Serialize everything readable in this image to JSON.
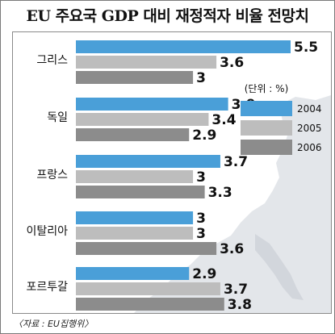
{
  "title": "EU 주요국 GDP 대비 재정적자 비율 전망치",
  "source": "〈자료 : EU집행위〉",
  "unit": "(단위 : %)",
  "chart_data": {
    "type": "bar",
    "orientation": "horizontal",
    "title": "EU 주요국 GDP 대비 재정적자 비율 전망치",
    "unit": "(단위 : %)",
    "categories": [
      "그리스",
      "독일",
      "프랑스",
      "이탈리아",
      "포르투갈"
    ],
    "series": [
      {
        "name": "2004",
        "color": "#4a9fd8",
        "values": [
          5.5,
          3.9,
          3.7,
          3,
          2.9
        ]
      },
      {
        "name": "2005",
        "color": "#bdbdbd",
        "values": [
          3.6,
          3.4,
          3,
          3,
          3.7
        ]
      },
      {
        "name": "2006",
        "color": "#8c8c8c",
        "values": [
          3,
          2.9,
          3.3,
          3.6,
          3.8
        ]
      }
    ],
    "value_labels": [
      [
        "5.5",
        "3.9",
        "3.7",
        "3",
        "2.9"
      ],
      [
        "3.6",
        "3.4",
        "3",
        "3",
        "3.7"
      ],
      [
        "3",
        "2.9",
        "3.3",
        "3.6",
        "3.8"
      ]
    ],
    "xlim": [
      0,
      5.5
    ],
    "legend_position": "right",
    "grid": false
  }
}
